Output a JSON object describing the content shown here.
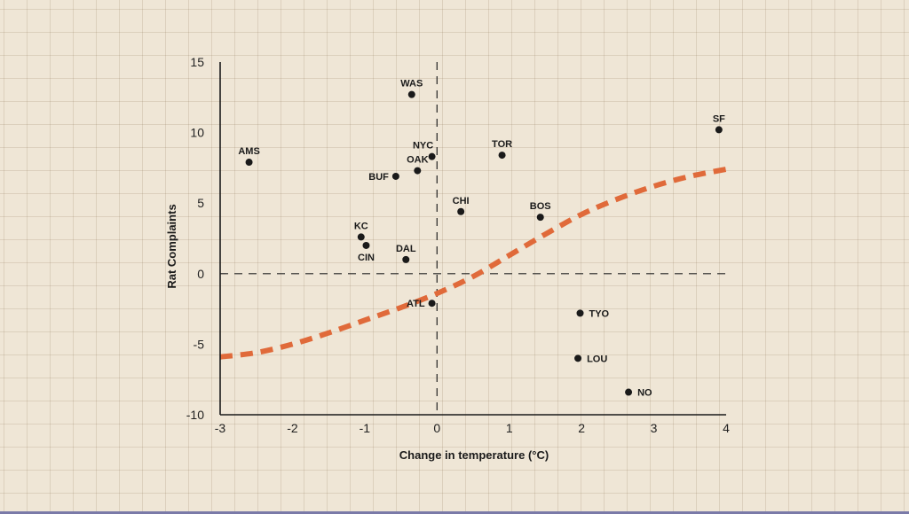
{
  "chart_data": {
    "type": "scatter",
    "title": "",
    "xlabel": "Change in temperature (°C)",
    "ylabel": "Rat Complaints",
    "xlim": [
      -3,
      4
    ],
    "ylim": [
      -10,
      15
    ],
    "xticks": [
      -3,
      -2,
      -1,
      0,
      1,
      2,
      3,
      4
    ],
    "yticks": [
      -10,
      -5,
      0,
      5,
      10,
      15
    ],
    "grid": false,
    "reference_lines": {
      "x": 0,
      "y": 0
    },
    "points": [
      {
        "label": "WAS",
        "x": -0.35,
        "y": 12.7
      },
      {
        "label": "AMS",
        "x": -2.6,
        "y": 7.9
      },
      {
        "label": "NYC",
        "x": -0.07,
        "y": 8.3
      },
      {
        "label": "OAK",
        "x": -0.27,
        "y": 7.3
      },
      {
        "label": "BUF",
        "x": -0.57,
        "y": 6.9
      },
      {
        "label": "TOR",
        "x": 0.9,
        "y": 8.4
      },
      {
        "label": "SF",
        "x": 3.9,
        "y": 10.2
      },
      {
        "label": "CHI",
        "x": 0.33,
        "y": 4.4
      },
      {
        "label": "BOS",
        "x": 1.43,
        "y": 4.0
      },
      {
        "label": "KC",
        "x": -1.05,
        "y": 2.6
      },
      {
        "label": "CIN",
        "x": -0.98,
        "y": 2.0
      },
      {
        "label": "DAL",
        "x": -0.43,
        "y": 1.0
      },
      {
        "label": "ATL",
        "x": -0.07,
        "y": -2.1
      },
      {
        "label": "TYO",
        "x": 1.98,
        "y": -2.8
      },
      {
        "label": "LOU",
        "x": 1.95,
        "y": -6.0
      },
      {
        "label": "NO",
        "x": 2.65,
        "y": -8.4
      }
    ],
    "trend_line": {
      "style": "dashed",
      "color": "#e06a3a",
      "x": [
        -3,
        -2.5,
        -2,
        -1.5,
        -1,
        -0.5,
        0,
        0.5,
        1,
        1.5,
        2,
        2.5,
        3,
        3.5,
        4
      ],
      "y": [
        -5.9,
        -5.6,
        -5.0,
        -4.2,
        -3.3,
        -2.4,
        -1.4,
        -0.2,
        1.3,
        2.8,
        4.2,
        5.3,
        6.2,
        6.9,
        7.4
      ]
    },
    "colors": {
      "points": "#1a1a1a",
      "axes": "#1a1a1a"
    }
  }
}
